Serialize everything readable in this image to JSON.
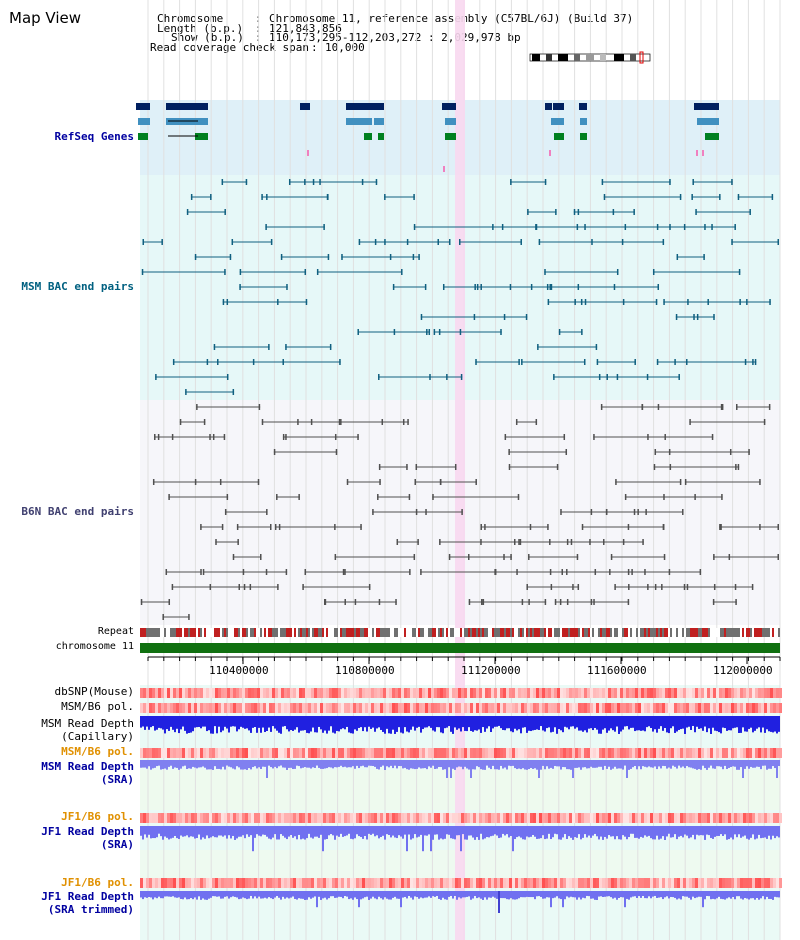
{
  "page": {
    "title": "Map View"
  },
  "header": {
    "chromosome_label": "Chromosome",
    "chromosome_value": "Chromosome 11, reference assembly (C57BL/6J) (Build 37)",
    "length_label": "Length (b.p.)",
    "length_value": "121,843,856",
    "show_label": "Show (b.p.)",
    "show_value": "110,173,295-112,203,272 : 2,029,978 bp",
    "coverage_label": "Read coverage check span",
    "coverage_value": "10,000"
  },
  "tracks": {
    "refseq": "RefSeq Genes",
    "msm_bac": "MSM BAC end pairs",
    "b6n_bac": "B6N BAC end pairs",
    "repeat": "Repeat",
    "chromosome": "chromosome 11",
    "dbsnp": "dbSNP(Mouse)",
    "msm_b6_pol": "MSM/B6 pol.",
    "msm_depth_cap_1": "MSM Read Depth",
    "msm_depth_cap_2": "(Capillary)",
    "msm_b6_pol_sra": "MSM/B6 pol.",
    "msm_depth_sra_1": "MSM Read Depth",
    "msm_depth_sra_2": "(SRA)",
    "jf1_b6_pol": "JF1/B6 pol.",
    "jf1_depth_1": "JF1 Read Depth",
    "jf1_depth_2": "(SRA)",
    "jf1_b6_pol_t": "JF1/B6 pol.",
    "jf1_trim_1": "JF1 Read Depth",
    "jf1_trim_2": "(SRA trimmed)"
  },
  "axis": {
    "ticks": [
      "110400000",
      "110800000",
      "111200000",
      "111600000",
      "112000000"
    ]
  },
  "colors": {
    "refseq_bg": "#dff0f8",
    "msm_bg": "#e6f8f8",
    "b6n_bg": "#f6f6fa",
    "highlight": "#f8d8f0",
    "chromosome": "#107010",
    "label_blue": "#0000a0",
    "label_teal": "#006080",
    "label_orange": "#e09000",
    "depth_blue": "#3030e0",
    "depth_light": "#8080f0"
  }
}
